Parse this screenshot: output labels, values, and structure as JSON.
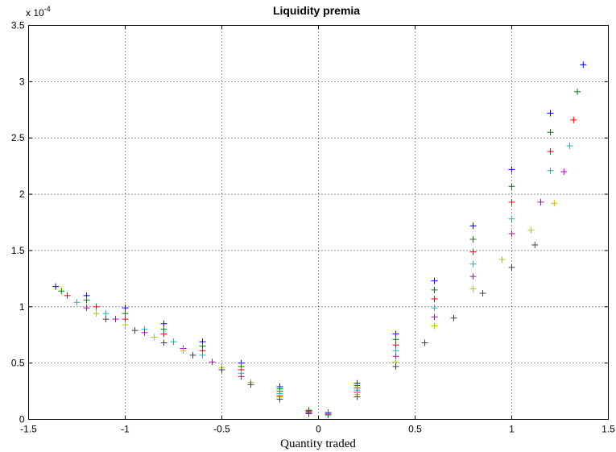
{
  "chart_data": {
    "type": "scatter",
    "title": "Liquidity premia",
    "xlabel": "Quantity traded",
    "ylabel": "",
    "xlim": [
      -1.5,
      1.5
    ],
    "ylim": [
      0,
      0.00035
    ],
    "x_ticks": [
      "-1.5",
      "-1",
      "-0.5",
      "0",
      "0.5",
      "1",
      "1.5"
    ],
    "y_ticks": [
      "0",
      "0.5",
      "1",
      "1.5",
      "2",
      "2.5",
      "3",
      "3.5"
    ],
    "y_exponent_label": "x 10",
    "y_exponent_power": "-4",
    "grid": true,
    "marker": "+",
    "colors": [
      "#0000ff",
      "#008000",
      "#ff0000",
      "#00bfbf",
      "#bf00bf",
      "#bfbf00",
      "#404040"
    ],
    "series": [
      {
        "color_index": 0,
        "sell": {
          "x": [
            -1.36,
            -1.2,
            -1.0,
            -0.8,
            -0.6,
            -0.4,
            -0.2,
            -0.05
          ],
          "y": [
            0.000118,
            0.00011,
            9.9e-05,
            8.5e-05,
            6.9e-05,
            5e-05,
            2.9e-05,
            8e-06
          ]
        },
        "buy": {
          "x": [
            0.05,
            0.2,
            0.4,
            0.6,
            0.8,
            1.0,
            1.2,
            1.37
          ],
          "y": [
            6e-06,
            3.2e-05,
            7.6e-05,
            0.000123,
            0.000172,
            0.000222,
            0.000272,
            0.000315
          ]
        }
      },
      {
        "color_index": 1,
        "sell": {
          "x": [
            -1.33,
            -1.2,
            -1.0,
            -0.8,
            -0.6,
            -0.4,
            -0.2,
            -0.05
          ],
          "y": [
            0.000114,
            0.000106,
            9.4e-05,
            8e-05,
            6.5e-05,
            4.7e-05,
            2.7e-05,
            8e-06
          ]
        },
        "buy": {
          "x": [
            0.05,
            0.2,
            0.4,
            0.6,
            0.8,
            1.0,
            1.2,
            1.34
          ],
          "y": [
            5e-06,
            3e-05,
            7.1e-05,
            0.000115,
            0.00016,
            0.000207,
            0.000255,
            0.000291
          ]
        }
      },
      {
        "color_index": 2,
        "sell": {
          "x": [
            -1.3,
            -1.15,
            -1.0,
            -0.8,
            -0.6,
            -0.4,
            -0.2,
            -0.05
          ],
          "y": [
            0.00011,
            0.0001,
            8.9e-05,
            7.6e-05,
            6.1e-05,
            4.4e-05,
            2.5e-05,
            7e-06
          ]
        },
        "buy": {
          "x": [
            0.05,
            0.2,
            0.4,
            0.6,
            0.8,
            1.0,
            1.2,
            1.32
          ],
          "y": [
            5e-06,
            2.8e-05,
            6.6e-05,
            0.000107,
            0.000149,
            0.000193,
            0.000238,
            0.000266
          ]
        }
      },
      {
        "color_index": 3,
        "sell": {
          "x": [
            -1.25,
            -1.1,
            -0.9,
            -0.75,
            -0.6,
            -0.4,
            -0.2,
            -0.05
          ],
          "y": [
            0.000104,
            9.4e-05,
            8e-05,
            6.9e-05,
            5.7e-05,
            4.1e-05,
            2.3e-05,
            6e-06
          ]
        },
        "buy": {
          "x": [
            0.05,
            0.2,
            0.4,
            0.6,
            0.8,
            1.0,
            1.2,
            1.3
          ],
          "y": [
            5e-06,
            2.6e-05,
            6.1e-05,
            9.9e-05,
            0.000138,
            0.000178,
            0.000221,
            0.000243
          ]
        }
      },
      {
        "color_index": 4,
        "sell": {
          "x": [
            -1.2,
            -1.05,
            -0.9,
            -0.7,
            -0.55,
            -0.4,
            -0.2,
            -0.05
          ],
          "y": [
            9.9e-05,
            8.9e-05,
            7.7e-05,
            6.3e-05,
            5.1e-05,
            3.8e-05,
            2.1e-05,
            6e-06
          ]
        },
        "buy": {
          "x": [
            0.05,
            0.2,
            0.4,
            0.6,
            0.8,
            1.0,
            1.15,
            1.27
          ],
          "y": [
            4e-06,
            2.4e-05,
            5.6e-05,
            9.1e-05,
            0.000127,
            0.000165,
            0.000193,
            0.00022
          ]
        }
      },
      {
        "color_index": 5,
        "sell": {
          "x": [
            -1.15,
            -1.0,
            -0.85,
            -0.7,
            -0.5,
            -0.35,
            -0.2,
            -0.05
          ],
          "y": [
            9.4e-05,
            8.4e-05,
            7.3e-05,
            6.1e-05,
            4.6e-05,
            3.3e-05,
            2e-05,
            5e-06
          ]
        },
        "buy": {
          "x": [
            0.05,
            0.2,
            0.4,
            0.6,
            0.8,
            0.95,
            1.1,
            1.22
          ],
          "y": [
            4e-06,
            2.2e-05,
            5.1e-05,
            8.3e-05,
            0.000116,
            0.000142,
            0.000168,
            0.000192
          ]
        }
      },
      {
        "color_index": 6,
        "sell": {
          "x": [
            -1.1,
            -0.95,
            -0.8,
            -0.65,
            -0.5,
            -0.35,
            -0.2,
            -0.05
          ],
          "y": [
            8.9e-05,
            7.9e-05,
            6.8e-05,
            5.7e-05,
            4.4e-05,
            3.1e-05,
            1.8e-05,
            5e-06
          ]
        },
        "buy": {
          "x": [
            0.05,
            0.2,
            0.4,
            0.55,
            0.7,
            0.85,
            1.0,
            1.12
          ],
          "y": [
            4e-06,
            2e-05,
            4.7e-05,
            6.8e-05,
            9e-05,
            0.000112,
            0.000135,
            0.000155
          ]
        }
      }
    ]
  }
}
